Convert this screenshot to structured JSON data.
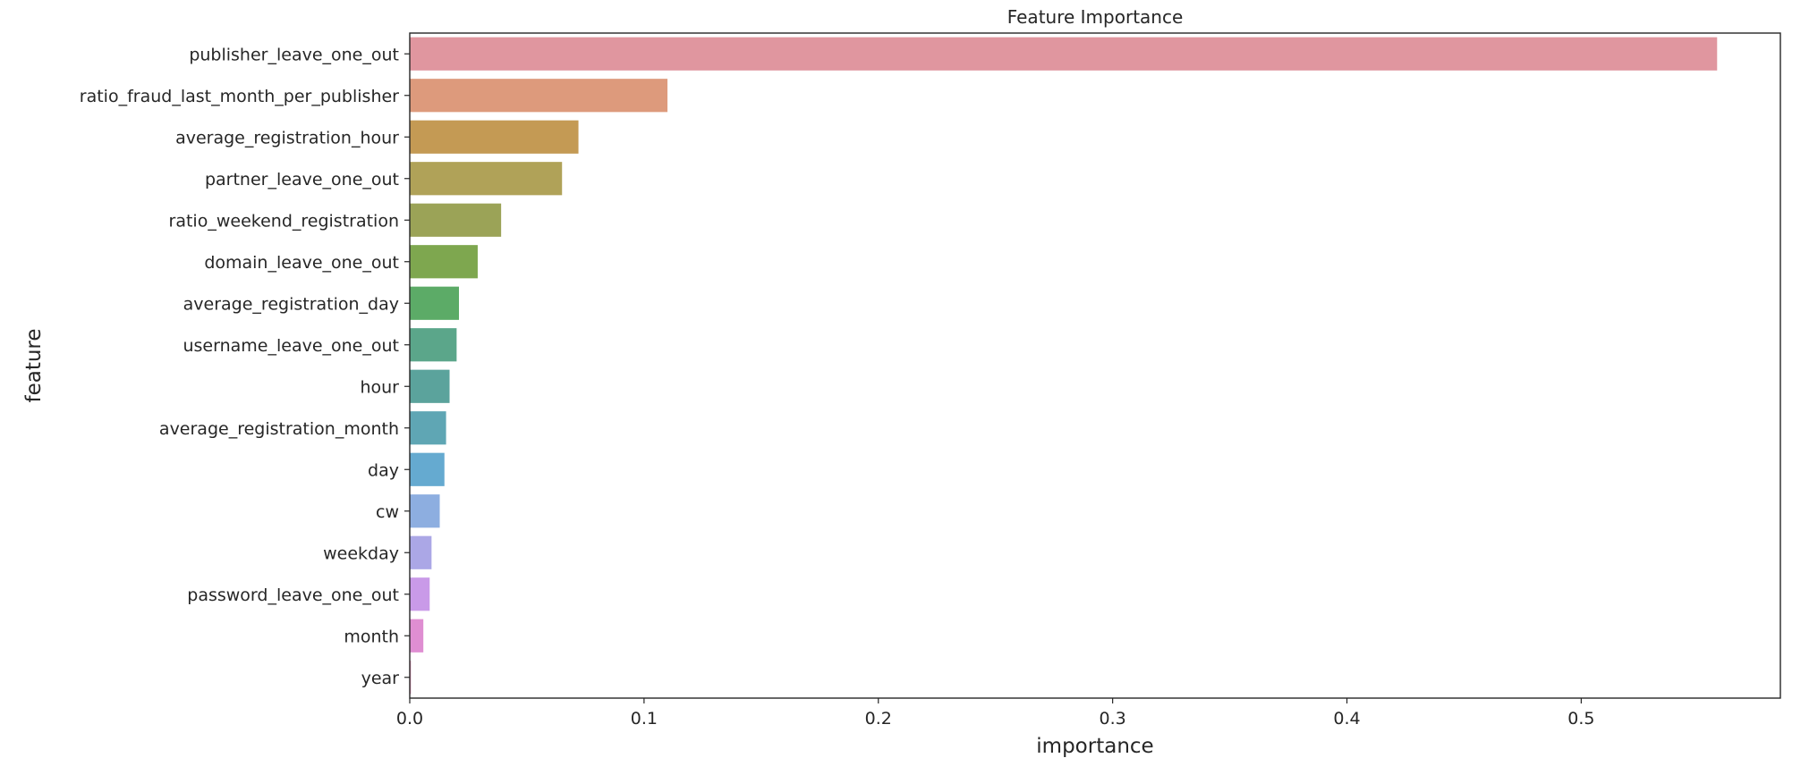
{
  "chart_data": {
    "type": "bar",
    "orientation": "horizontal",
    "title": "Feature Importance",
    "xlabel": "importance",
    "ylabel": "feature",
    "xlim": [
      0,
      0.585
    ],
    "xticks": [
      0.0,
      0.1,
      0.2,
      0.3,
      0.4,
      0.5
    ],
    "xtick_labels": [
      "0.0",
      "0.1",
      "0.2",
      "0.3",
      "0.4",
      "0.5"
    ],
    "grid": false,
    "categories": [
      "publisher_leave_one_out",
      "ratio_fraud_last_month_per_publisher",
      "average_registration_hour",
      "partner_leave_one_out",
      "ratio_weekend_registration",
      "domain_leave_one_out",
      "average_registration_day",
      "username_leave_one_out",
      "hour",
      "average_registration_month",
      "day",
      "cw",
      "weekday",
      "password_leave_one_out",
      "month",
      "year"
    ],
    "values": [
      0.558,
      0.11,
      0.072,
      0.065,
      0.039,
      0.029,
      0.021,
      0.02,
      0.017,
      0.0155,
      0.0148,
      0.0128,
      0.0093,
      0.0085,
      0.0058,
      0.0005
    ],
    "colors": [
      "#e0969f",
      "#dd9a7c",
      "#c49a54",
      "#b0a258",
      "#9ba357",
      "#7ea74f",
      "#5cab67",
      "#5ba68a",
      "#5ba39c",
      "#5fa6b4",
      "#65aad0",
      "#8daee0",
      "#aba7e6",
      "#c99ae8",
      "#df8ed2",
      "#e28fb4"
    ]
  }
}
